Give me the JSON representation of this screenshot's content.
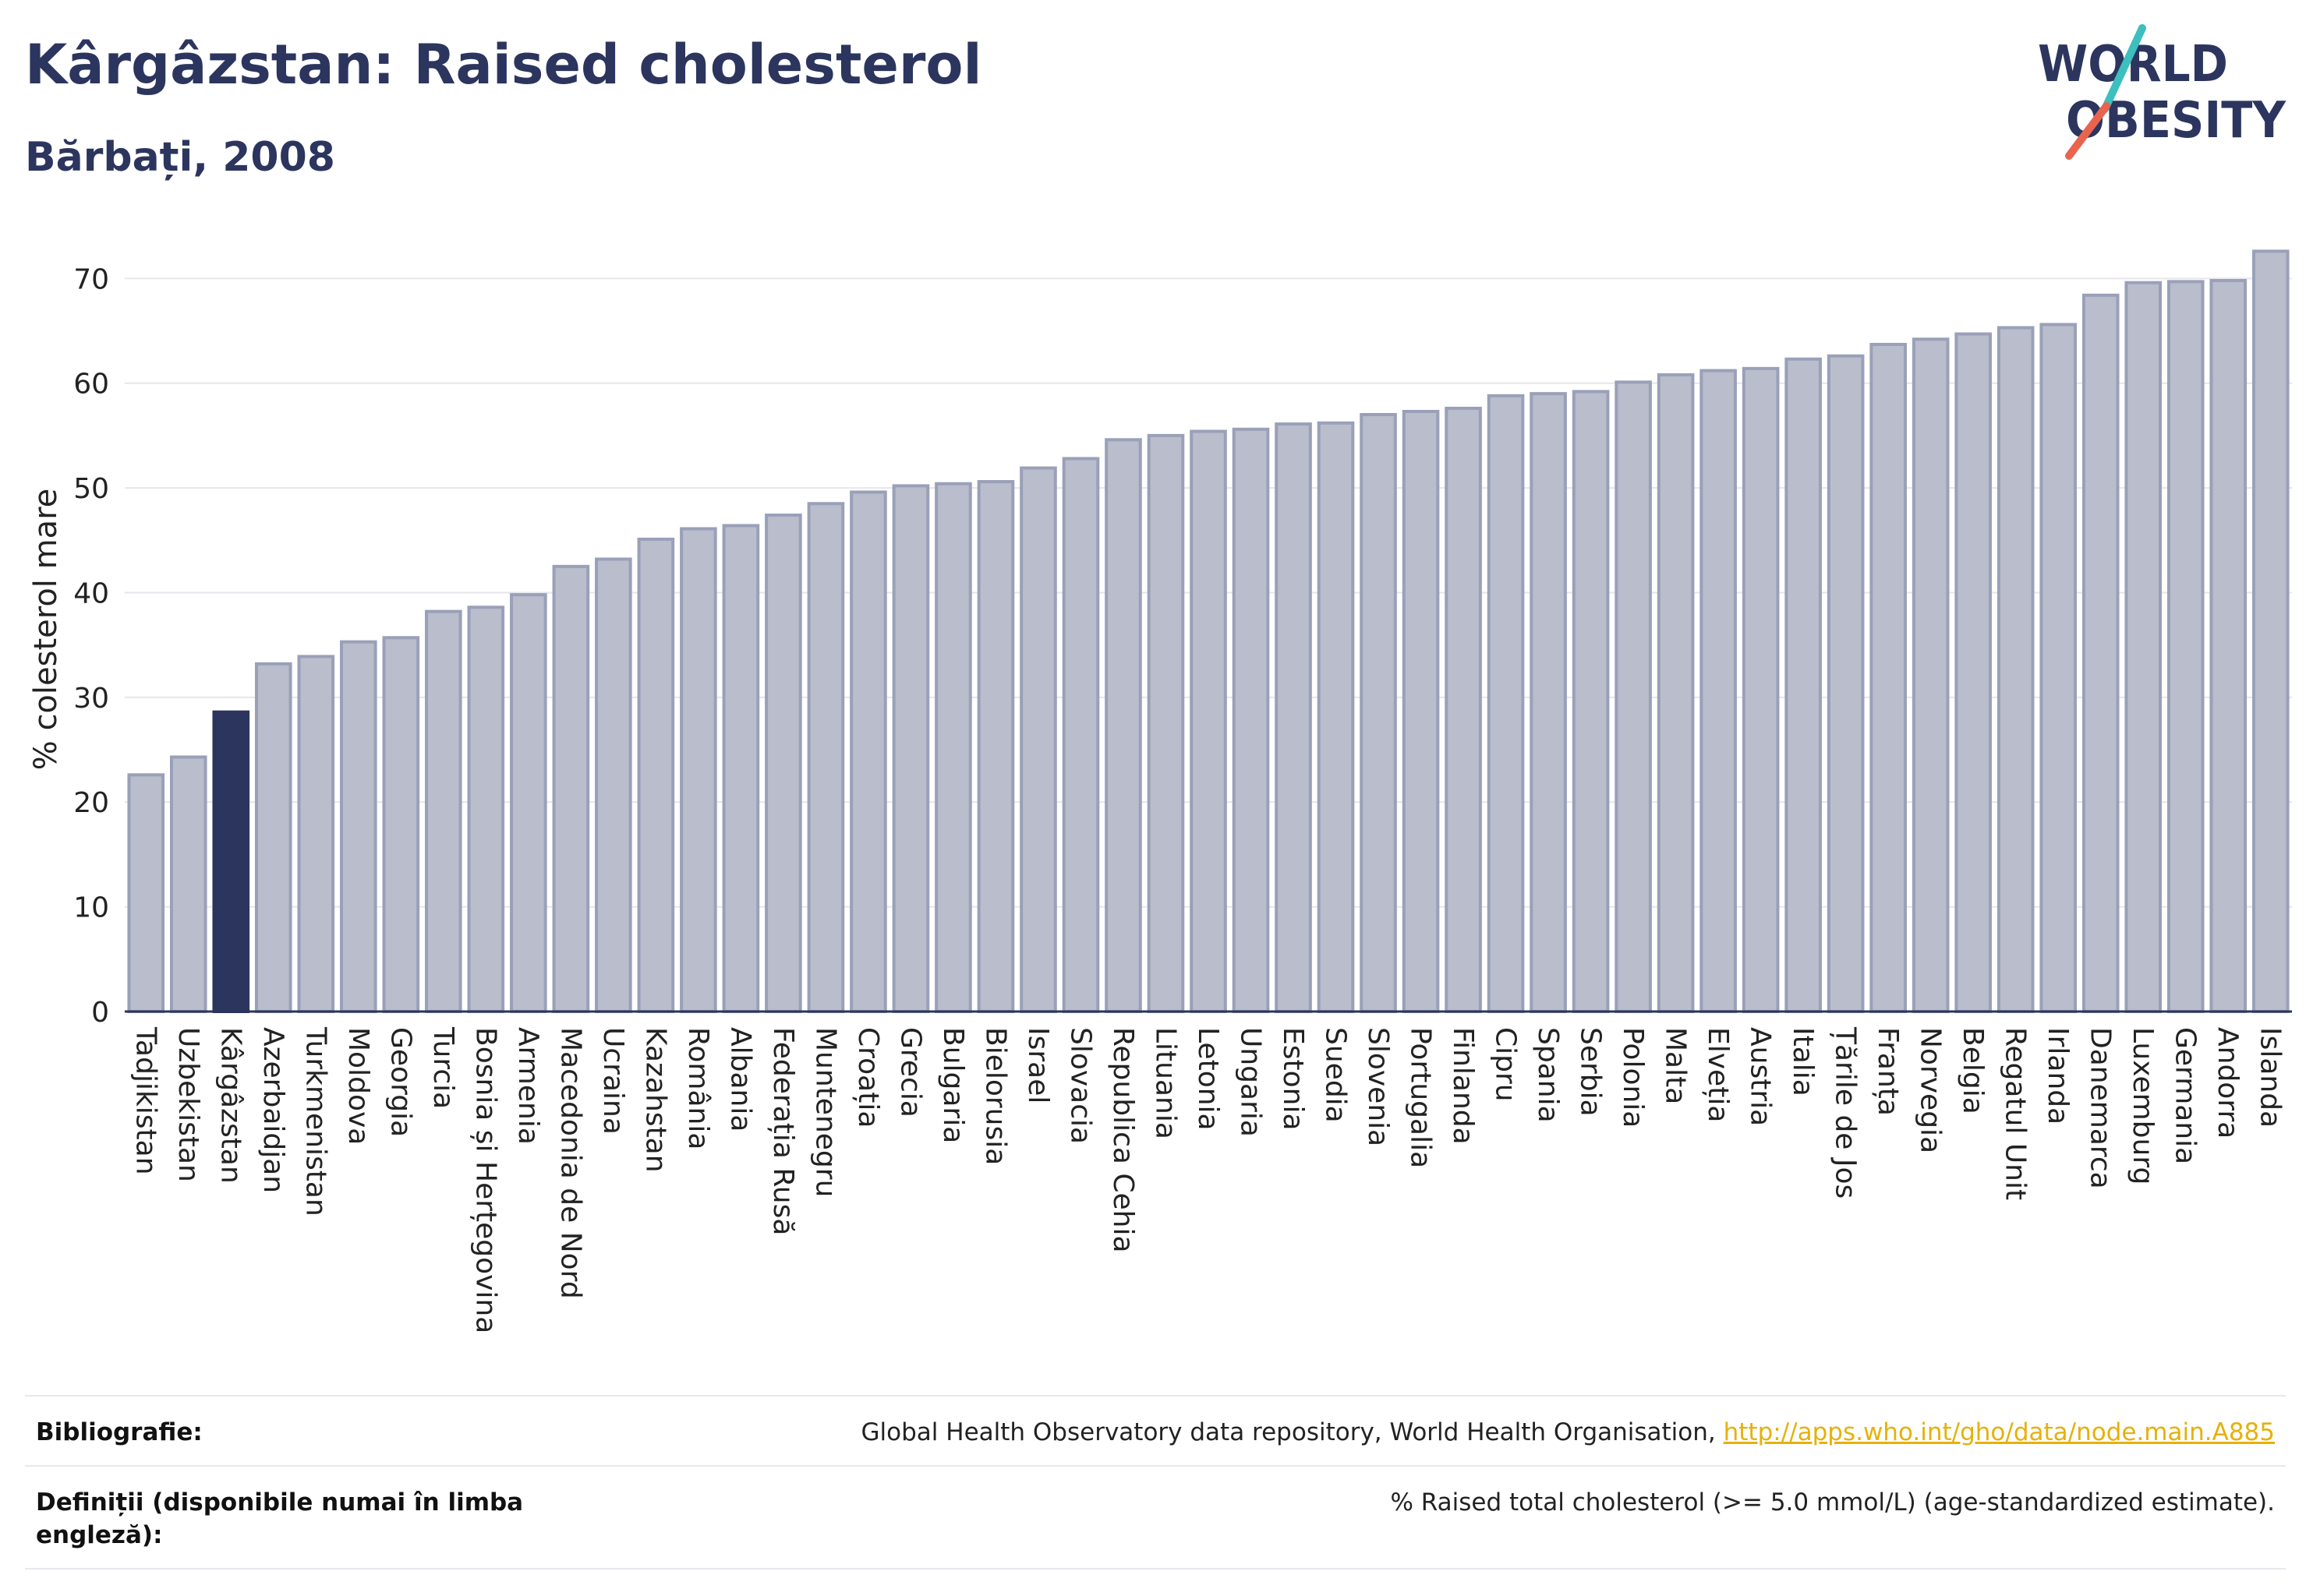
{
  "header": {
    "title": "Kârgâzstan: Raised cholesterol",
    "subtitle": "Bărbați, 2008"
  },
  "logo": {
    "line1": "WORLD",
    "line2": "OBESITY",
    "slash_colors": [
      "#3cbfbf",
      "#e8644f"
    ]
  },
  "chart_data": {
    "type": "bar",
    "ylabel": "% colesterol mare",
    "ylim": [
      0,
      73
    ],
    "yticks": [
      0,
      10,
      20,
      30,
      40,
      50,
      60,
      70
    ],
    "grid": true,
    "highlight": "Kârgâzstan",
    "colors": {
      "bar": "#b9bdcc",
      "bar_edge": "#9aa0b8",
      "highlight": "#2b355e",
      "axis": "#2b355e"
    },
    "categories": [
      "Tadjikistan",
      "Uzbekistan",
      "Kârgâzstan",
      "Azerbaidjan",
      "Turkmenistan",
      "Moldova",
      "Georgia",
      "Turcia",
      "Bosnia și Herțegovina",
      "Armenia",
      "Macedonia de Nord",
      "Ucraina",
      "Kazahstan",
      "România",
      "Albania",
      "Federația Rusă",
      "Muntenegru",
      "Croația",
      "Grecia",
      "Bulgaria",
      "Bielorusia",
      "Israel",
      "Slovacia",
      "Republica Cehia",
      "Lituania",
      "Letonia",
      "Ungaria",
      "Estonia",
      "Suedia",
      "Slovenia",
      "Portugalia",
      "Finlanda",
      "Cipru",
      "Spania",
      "Serbia",
      "Polonia",
      "Malta",
      "Elveția",
      "Austria",
      "Italia",
      "Țările de Jos",
      "Franța",
      "Norvegia",
      "Belgia",
      "Regatul Unit",
      "Irlanda",
      "Danemarca",
      "Luxemburg",
      "Germania",
      "Andorra",
      "Islanda"
    ],
    "values": [
      22.6,
      24.3,
      28.6,
      33.2,
      33.9,
      35.3,
      35.7,
      38.2,
      38.6,
      39.8,
      42.5,
      43.2,
      45.1,
      46.1,
      46.4,
      47.4,
      48.5,
      49.6,
      50.2,
      50.4,
      50.6,
      51.9,
      52.8,
      54.6,
      55.0,
      55.4,
      55.6,
      56.1,
      56.2,
      57.0,
      57.3,
      57.6,
      58.8,
      59.0,
      59.2,
      60.1,
      60.8,
      61.2,
      61.4,
      62.3,
      62.6,
      63.7,
      64.2,
      64.7,
      65.3,
      65.6,
      68.4,
      69.6,
      69.7,
      69.8,
      72.6
    ]
  },
  "footer": {
    "bibliography_label": "Bibliografie:",
    "bibliography_text": "Global Health Observatory data repository, World Health Organisation, ",
    "bibliography_link": "http://apps.who.int/gho/data/node.main.A885",
    "definitions_label": "Definiții (disponibile numai în limba engleză):",
    "definitions_text": "% Raised total cholesterol (>= 5.0 mmol/L) (age-standardized estimate)."
  }
}
